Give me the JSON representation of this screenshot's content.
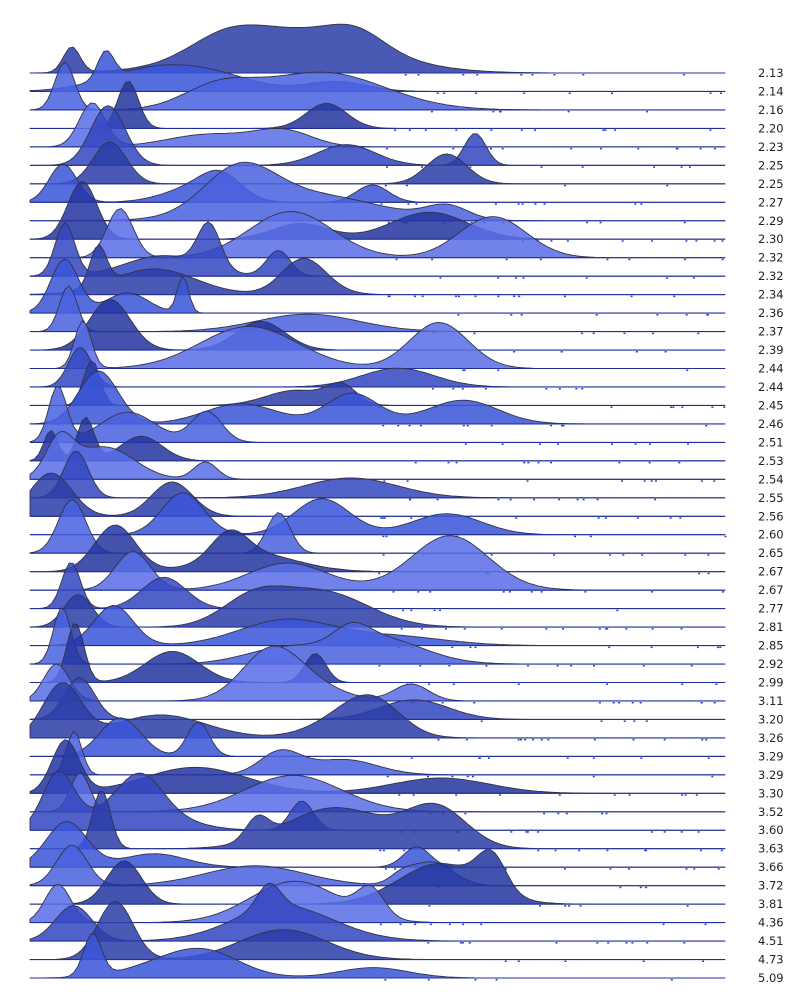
{
  "chart_data": {
    "type": "ridgeline",
    "title": "",
    "xlabel": "",
    "ylabel": "",
    "grid": false,
    "legend": "none",
    "labels": [
      "2.13",
      "2.14",
      "2.16",
      "2.20",
      "2.23",
      "2.25",
      "2.25",
      "2.27",
      "2.29",
      "2.30",
      "2.32",
      "2.32",
      "2.34",
      "2.36",
      "2.37",
      "2.39",
      "2.44",
      "2.44",
      "2.45",
      "2.46",
      "2.51",
      "2.53",
      "2.54",
      "2.55",
      "2.56",
      "2.60",
      "2.65",
      "2.67",
      "2.67",
      "2.77",
      "2.81",
      "2.85",
      "2.92",
      "2.99",
      "3.11",
      "3.20",
      "3.26",
      "3.29",
      "3.29",
      "3.30",
      "3.52",
      "3.60",
      "3.63",
      "3.66",
      "3.72",
      "3.81",
      "4.36",
      "4.51",
      "4.73",
      "5.09"
    ],
    "colors": {
      "palette": [
        "#2b3ea8",
        "#3a55d8",
        "#4a62e0",
        "#2435a0",
        "#5a6fe6",
        "#3347c0"
      ],
      "text": "#222222"
    }
  }
}
